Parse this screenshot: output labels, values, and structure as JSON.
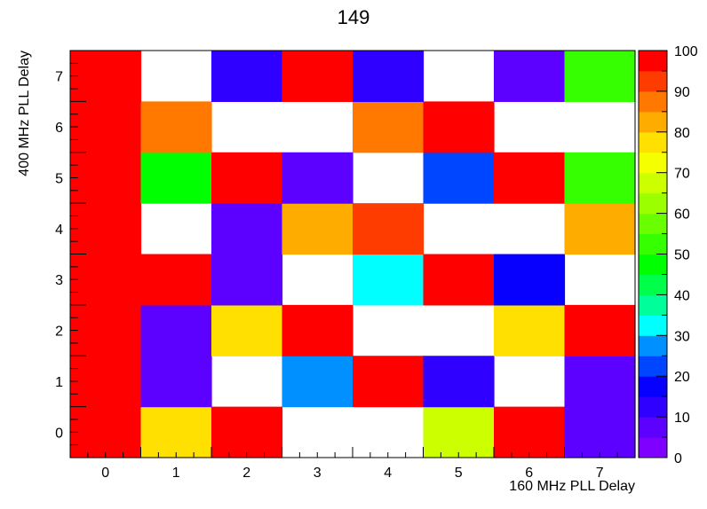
{
  "chart_data": {
    "type": "heatmap",
    "title": "149",
    "xlabel": "160 MHz PLL Delay",
    "ylabel": "400 MHz PLL Delay",
    "x_categories": [
      "0",
      "1",
      "2",
      "3",
      "4",
      "5",
      "6",
      "7"
    ],
    "y_categories": [
      "0",
      "1",
      "2",
      "3",
      "4",
      "5",
      "6",
      "7"
    ],
    "zlim": [
      0,
      100
    ],
    "z_ticks": [
      0,
      10,
      20,
      30,
      40,
      50,
      60,
      70,
      80,
      90,
      100
    ],
    "colorbar_colors": [
      "#7f00ff",
      "#5c00ff",
      "#2f00ff",
      "#0800ff",
      "#0045ff",
      "#0090ff",
      "#00ffff",
      "#00ff9a",
      "#00ff4a",
      "#00ff00",
      "#35ff00",
      "#6aff00",
      "#9cff00",
      "#ccff00",
      "#f6ff00",
      "#ffe000",
      "#ffac00",
      "#ff7800",
      "#ff3c00",
      "#ff0000"
    ],
    "grid": false,
    "values": [
      [
        100,
        75,
        100,
        null,
        null,
        65,
        100,
        5
      ],
      [
        100,
        5,
        null,
        25,
        100,
        10,
        null,
        5
      ],
      [
        100,
        5,
        75,
        95,
        null,
        null,
        75,
        100
      ],
      [
        100,
        100,
        5,
        null,
        30,
        100,
        15,
        null
      ],
      [
        100,
        null,
        5,
        80,
        90,
        null,
        null,
        80
      ],
      [
        100,
        45,
        100,
        5,
        null,
        20,
        100,
        50
      ],
      [
        100,
        85,
        null,
        null,
        85,
        95,
        null,
        null
      ],
      [
        100,
        null,
        10,
        100,
        10,
        null,
        5,
        50
      ]
    ]
  }
}
